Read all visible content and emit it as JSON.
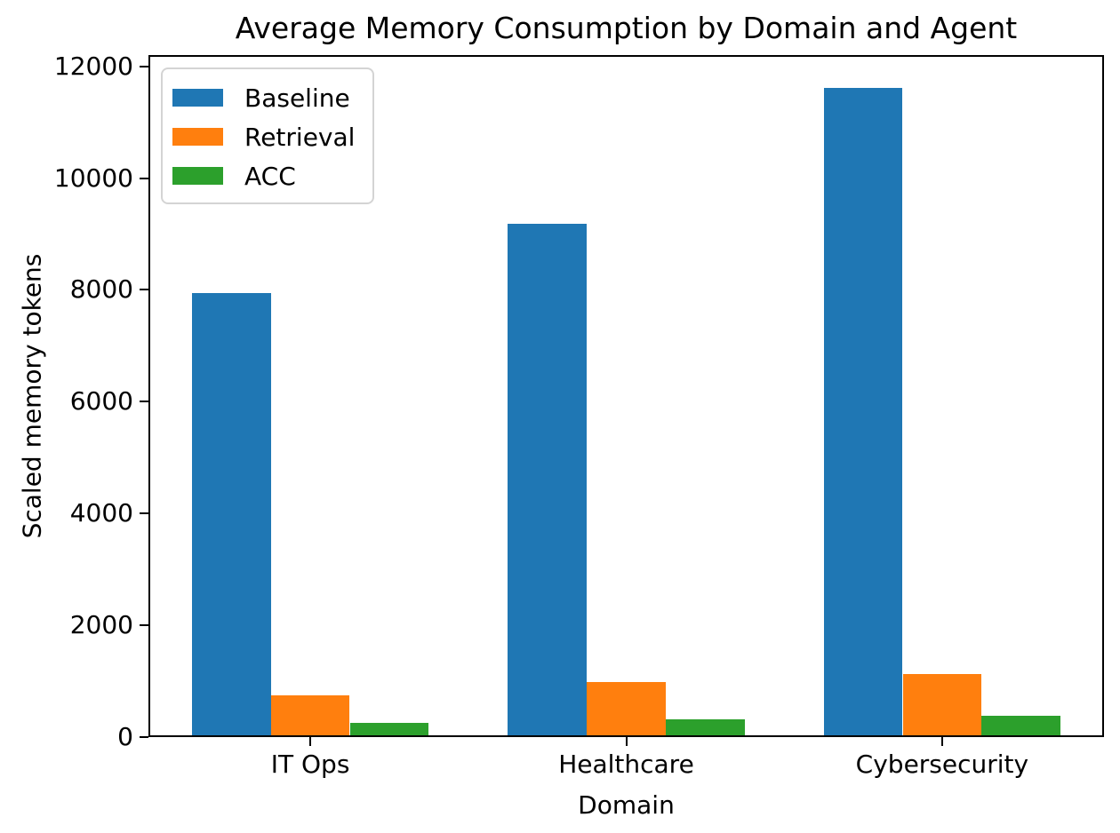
{
  "chart_data": {
    "type": "bar",
    "title": "Average Memory Consumption by Domain and Agent",
    "xlabel": "Domain",
    "ylabel": "Scaled memory tokens",
    "categories": [
      "IT Ops",
      "Healthcare",
      "Cybersecurity"
    ],
    "series": [
      {
        "name": "Baseline",
        "color": "#1f77b4",
        "values": [
          7950,
          9190,
          11620
        ]
      },
      {
        "name": "Retrieval",
        "color": "#ff7f0e",
        "values": [
          750,
          985,
          1125
        ]
      },
      {
        "name": "ACC",
        "color": "#2ca02c",
        "values": [
          255,
          315,
          380
        ]
      }
    ],
    "yticks": [
      0,
      2000,
      4000,
      6000,
      8000,
      10000,
      12000
    ],
    "ylim": [
      0,
      12200
    ],
    "xlim": [
      -0.5125,
      2.5125
    ],
    "bar_width": 0.25,
    "grid": false,
    "legend": {
      "position": "upper left"
    }
  }
}
